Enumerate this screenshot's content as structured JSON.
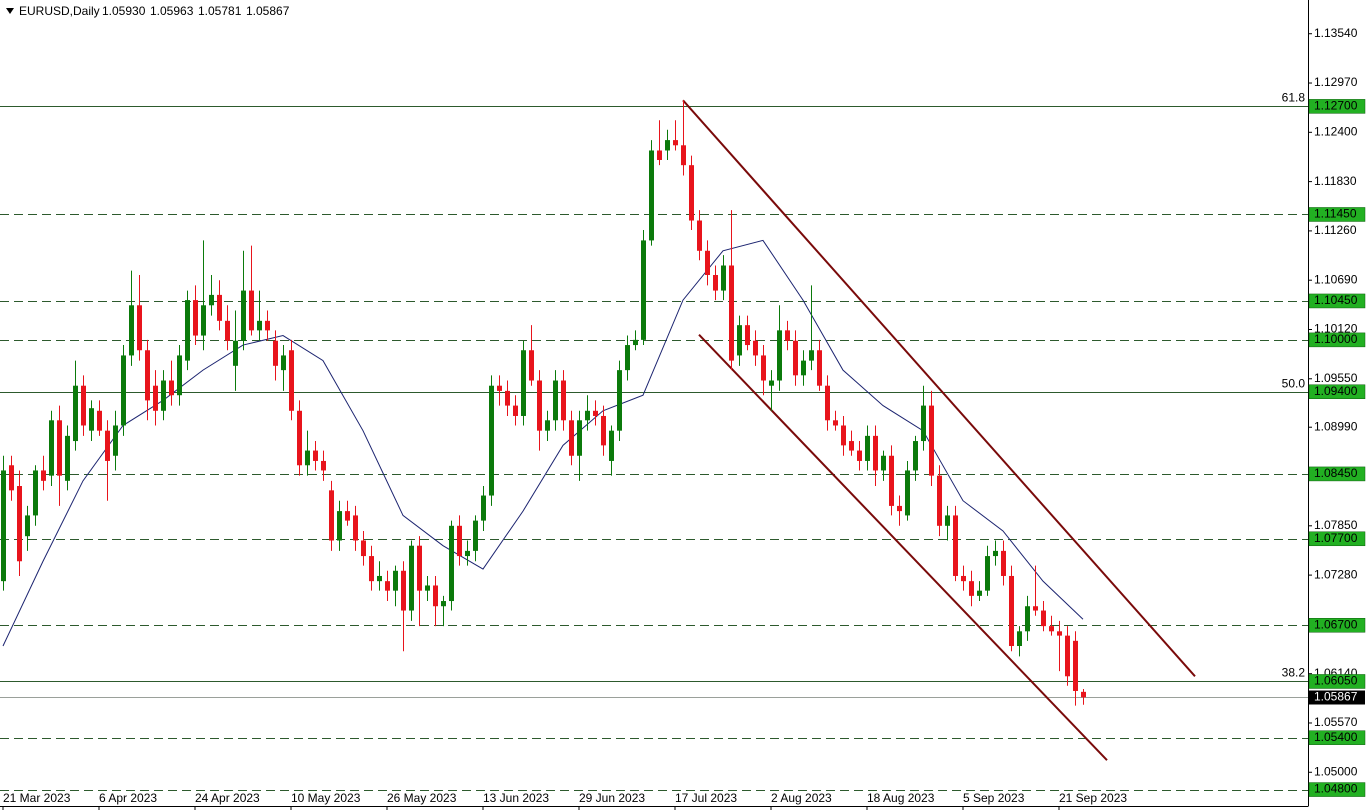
{
  "chart_data": {
    "type": "candlestick",
    "header": {
      "symbol": "EURUSD,Daily",
      "quote": [
        "1.05930",
        "1.05963",
        "1.05781",
        "1.05867"
      ]
    },
    "x": [
      0,
      1,
      2,
      3,
      4,
      5,
      6,
      7,
      8,
      9,
      10,
      11,
      12,
      13,
      14,
      15,
      16,
      17,
      18,
      19,
      20,
      21,
      22,
      23,
      24,
      25,
      26,
      27,
      28,
      29,
      30,
      31,
      32,
      33,
      34,
      35,
      36,
      37,
      38,
      39,
      40,
      41,
      42,
      43,
      44,
      45,
      46,
      47,
      48,
      49,
      50,
      51,
      52,
      53,
      54,
      55,
      56,
      57,
      58,
      59,
      60,
      61,
      62,
      63,
      64,
      65,
      66,
      67,
      68,
      69,
      70,
      71,
      72,
      73,
      74,
      75,
      76,
      77,
      78,
      79,
      80,
      81,
      82,
      83,
      84,
      85,
      86,
      87,
      88,
      89,
      90,
      91,
      92,
      93,
      94,
      95,
      96,
      97,
      98,
      99,
      100,
      101,
      102,
      103,
      104,
      105,
      106,
      107,
      108,
      109,
      110,
      111,
      112,
      113,
      114,
      115,
      116,
      117,
      118,
      119,
      120,
      121,
      122,
      123,
      124,
      125,
      126,
      127,
      128,
      129,
      130,
      131,
      132,
      133,
      134,
      135
    ],
    "open": [
      1.0721,
      1.0855,
      1.0831,
      1.0773,
      1.0797,
      1.0849,
      1.0843,
      1.0907,
      1.0837,
      1.0883,
      1.0947,
      1.0895,
      1.0918,
      1.0895,
      1.0866,
      1.0901,
      1.0982,
      1.104,
      1.0988,
      1.0947,
      1.0918,
      1.0953,
      1.0936,
      1.0976,
      1.1046,
      1.1005,
      1.104,
      1.1052,
      1.1022,
      1.097,
      1.0999,
      1.1057,
      1.1011,
      1.1022,
      1.0999,
      1.0965,
      1.0988,
      1.0918,
      1.0855,
      1.0872,
      1.086,
      1.0826,
      1.0768,
      1.0802,
      1.0797,
      1.0768,
      1.075,
      1.0721,
      1.0721,
      1.071,
      1.0733,
      1.0687,
      1.0762,
      1.071,
      1.0716,
      1.0692,
      1.0698,
      1.0785,
      1.075,
      1.0756,
      1.0791,
      1.082,
      1.0947,
      1.0941,
      1.0924,
      1.0912,
      1.0988,
      1.0953,
      1.0895,
      1.0907,
      1.0953,
      1.0907,
      1.0866,
      1.0907,
      1.0918,
      1.0912,
      1.086,
      1.0895,
      1.0965,
      1.0994,
      1.1,
      1.1115,
      1.1219,
      1.1219,
      1.1231,
      1.1225,
      1.1202,
      1.1138,
      1.1103,
      1.1075,
      1.1057,
      1.1086,
      1.0982,
      1.1017,
      1.0999,
      1.0982,
      1.0947,
      1.0953,
      1.1011,
      1.0999,
      1.0959,
      1.0976,
      1.0988,
      1.0947,
      1.0907,
      1.0901,
      1.0883,
      1.0872,
      1.086,
      1.0889,
      1.0849,
      1.0866,
      1.0808,
      1.0797,
      1.0849,
      1.0883,
      1.0924,
      1.0843,
      1.0785,
      1.0797,
      1.0727,
      1.0721,
      1.0704,
      1.071,
      1.075,
      1.0756,
      1.0727,
      1.0646,
      1.0663,
      1.0692,
      1.0687,
      1.0669,
      1.0663,
      1.0658,
      1.0652,
      1.0593
    ],
    "high": [
      1.0866,
      1.0866,
      1.0849,
      1.0808,
      1.0855,
      1.0866,
      1.0918,
      1.0924,
      1.0901,
      1.0976,
      1.0959,
      1.093,
      1.093,
      1.0907,
      1.0918,
      1.0994,
      1.108,
      1.1075,
      1.1,
      1.0965,
      1.0965,
      1.0976,
      1.0994,
      1.1057,
      1.1063,
      1.1115,
      1.1075,
      1.1069,
      1.104,
      1.1034,
      1.1103,
      1.1109,
      1.1057,
      1.1034,
      1.1011,
      1.0994,
      1.1,
      1.093,
      1.0895,
      1.0883,
      1.0872,
      1.0837,
      1.0814,
      1.0814,
      1.0808,
      1.0779,
      1.0762,
      1.0744,
      1.0733,
      1.0739,
      1.0744,
      1.0768,
      1.0773,
      1.0727,
      1.0727,
      1.0704,
      1.0791,
      1.0797,
      1.0768,
      1.0797,
      1.0831,
      1.0959,
      1.0959,
      1.0953,
      1.0936,
      1.0999,
      1.1017,
      1.0965,
      1.0918,
      1.0965,
      1.0965,
      1.0918,
      1.0918,
      1.0936,
      1.093,
      1.0924,
      1.0901,
      1.0976,
      1.1005,
      1.1011,
      1.1127,
      1.1231,
      1.1254,
      1.1243,
      1.1254,
      1.1277,
      1.1213,
      1.115,
      1.1115,
      1.1086,
      1.1098,
      1.115,
      1.1028,
      1.1028,
      1.1011,
      1.0994,
      1.0965,
      1.104,
      1.1022,
      1.1011,
      1.0988,
      1.1063,
      1.1,
      1.0959,
      1.0918,
      1.0912,
      1.0895,
      1.0883,
      1.0901,
      1.0901,
      1.0872,
      1.0878,
      1.082,
      1.086,
      1.0889,
      1.0947,
      1.0941,
      1.0855,
      1.0808,
      1.0808,
      1.0739,
      1.0733,
      1.0721,
      1.0762,
      1.0768,
      1.0768,
      1.0739,
      1.0669,
      1.0704,
      1.0739,
      1.0698,
      1.0681,
      1.0675,
      1.0669,
      1.0663,
      1.05963
    ],
    "low": [
      1.071,
      1.0814,
      1.0727,
      1.0756,
      1.0785,
      1.0826,
      1.0831,
      1.0808,
      1.0826,
      1.0872,
      1.0889,
      1.0883,
      1.0889,
      1.0814,
      1.0849,
      1.0889,
      1.097,
      1.0976,
      1.0907,
      1.0901,
      1.0907,
      1.0924,
      1.0924,
      1.0965,
      1.0994,
      1.0988,
      1.1028,
      1.1011,
      1.0988,
      1.0941,
      1.0988,
      1.1005,
      1.0999,
      1.0999,
      1.0953,
      1.0941,
      1.0907,
      1.0843,
      1.0843,
      1.0849,
      1.0837,
      1.0756,
      1.0756,
      1.0785,
      1.0756,
      1.0739,
      1.071,
      1.071,
      1.0698,
      1.0692,
      1.064,
      1.0675,
      1.0669,
      1.0698,
      1.0669,
      1.0669,
      1.0687,
      1.0739,
      1.0739,
      1.0744,
      1.0779,
      1.0808,
      1.0924,
      1.0912,
      1.0901,
      1.0901,
      1.0947,
      1.0872,
      1.0883,
      1.0895,
      1.0895,
      1.0855,
      1.0837,
      1.0895,
      1.0901,
      1.0866,
      1.0843,
      1.0883,
      1.0953,
      1.0988,
      1.0994,
      1.1109,
      1.1202,
      1.1208,
      1.1219,
      1.119,
      1.1127,
      1.1092,
      1.1063,
      1.1046,
      1.1046,
      1.0965,
      1.097,
      1.0988,
      1.097,
      1.0936,
      1.0918,
      1.0941,
      1.0988,
      1.0947,
      1.0947,
      1.0965,
      1.0941,
      1.0895,
      1.0895,
      1.0866,
      1.0866,
      1.0849,
      1.0849,
      1.0831,
      1.0837,
      1.0797,
      1.0785,
      1.0791,
      1.0837,
      1.0872,
      1.0831,
      1.0773,
      1.0768,
      1.0721,
      1.071,
      1.0692,
      1.0698,
      1.0704,
      1.0739,
      1.0716,
      1.064,
      1.0634,
      1.0652,
      1.0681,
      1.0663,
      1.0658,
      1.0617,
      1.06,
      1.0577,
      1.05781
    ],
    "close": [
      1.0849,
      1.0826,
      1.0744,
      1.0797,
      1.0849,
      1.0837,
      1.0907,
      1.0843,
      1.0889,
      1.0947,
      1.0901,
      1.0921,
      1.0895,
      1.086,
      1.0901,
      1.0982,
      1.104,
      1.0988,
      1.093,
      1.0918,
      1.0953,
      1.0936,
      1.0982,
      1.1046,
      1.1005,
      1.104,
      1.1052,
      1.1022,
      1.0999,
      1.0999,
      1.1057,
      1.1011,
      1.1022,
      1.1011,
      1.097,
      1.0982,
      1.0918,
      1.0855,
      1.0872,
      1.086,
      1.0849,
      1.0768,
      1.0802,
      1.0791,
      1.0768,
      1.075,
      1.0721,
      1.0727,
      1.071,
      1.0733,
      1.0687,
      1.0762,
      1.071,
      1.0716,
      1.0692,
      1.0698,
      1.0785,
      1.075,
      1.0756,
      1.0791,
      1.082,
      1.0947,
      1.0941,
      1.0924,
      1.0912,
      1.0988,
      1.0953,
      1.0895,
      1.0907,
      1.0953,
      1.0907,
      1.0866,
      1.0907,
      1.0918,
      1.0912,
      1.0878,
      1.0895,
      1.0965,
      1.0994,
      1.1,
      1.1115,
      1.1219,
      1.1208,
      1.1231,
      1.1225,
      1.1202,
      1.1138,
      1.1103,
      1.1075,
      1.1057,
      1.1086,
      1.0976,
      1.1017,
      1.0994,
      1.0982,
      1.0953,
      1.0953,
      1.1011,
      1.0999,
      1.0959,
      1.0976,
      1.0988,
      1.0947,
      1.0907,
      1.0901,
      1.0878,
      1.0872,
      1.086,
      1.0889,
      1.0849,
      1.0866,
      1.0808,
      1.0802,
      1.0849,
      1.0883,
      1.0924,
      1.0843,
      1.0785,
      1.0797,
      1.0727,
      1.0721,
      1.0704,
      1.071,
      1.075,
      1.0756,
      1.0727,
      1.0646,
      1.0663,
      1.0692,
      1.0687,
      1.0669,
      1.0663,
      1.0658,
      1.0611,
      1.0594,
      1.05867
    ],
    "up_color": "#0b7a0b",
    "down_color": "#e8141c",
    "ma": {
      "x": [
        0,
        5,
        10,
        15,
        20,
        25,
        30,
        35,
        40,
        45,
        50,
        55,
        60,
        65,
        70,
        75,
        80,
        85,
        90,
        95,
        100,
        105,
        110,
        115,
        120,
        125,
        130,
        135
      ],
      "values": [
        1.0646,
        1.0744,
        1.0837,
        1.0901,
        1.093,
        1.0965,
        1.0994,
        1.1005,
        1.0976,
        1.0895,
        1.0797,
        1.0762,
        1.0735,
        1.0802,
        1.0878,
        1.0918,
        1.0936,
        1.1046,
        1.1103,
        1.1115,
        1.1046,
        1.0965,
        1.0924,
        1.0895,
        1.0814,
        1.0779,
        1.0721,
        1.0677
      ],
      "color": "#1c2470"
    },
    "trendlines": [
      {
        "x": [
          85,
          149
        ],
        "values": [
          1.1277,
          1.0611
        ]
      },
      {
        "x": [
          87,
          138
        ],
        "values": [
          1.1006,
          1.0514
        ]
      }
    ],
    "trendline_color": "#7a0a0a",
    "levels": [
      {
        "value": 1.127,
        "label": "1.12700",
        "solid": true,
        "fib": "61.8"
      },
      {
        "value": 1.1145,
        "label": "1.11450",
        "solid": false
      },
      {
        "value": 1.1045,
        "label": "1.10450",
        "solid": false
      },
      {
        "value": 1.1,
        "label": "1.10000",
        "solid": false
      },
      {
        "value": 1.094,
        "label": "1.09400",
        "solid": true,
        "fib": "50.0"
      },
      {
        "value": 1.0845,
        "label": "1.08450",
        "solid": false
      },
      {
        "value": 1.077,
        "label": "1.07700",
        "solid": false
      },
      {
        "value": 1.067,
        "label": "1.06700",
        "solid": false
      },
      {
        "value": 1.0605,
        "label": "1.06050",
        "solid": true,
        "fib": "38.2"
      },
      {
        "value": 1.054,
        "label": "1.05400",
        "solid": false
      },
      {
        "value": 1.048,
        "label": "1.04800",
        "solid": false
      }
    ],
    "level_color": "#2d5a2d",
    "level_box_color": "#22b022",
    "current": {
      "value": 1.05867,
      "label": "1.05867"
    },
    "xlim": [
      -0.375,
      163.125
    ],
    "ylim": [
      1.0461,
      1.1393
    ],
    "xticks": [
      {
        "value": 0,
        "label": "21 Mar 2023"
      },
      {
        "value": 12,
        "label": "6 Apr 2023"
      },
      {
        "value": 24,
        "label": "24 Apr 2023"
      },
      {
        "value": 36,
        "label": "10 May 2023"
      },
      {
        "value": 48,
        "label": "26 May 2023"
      },
      {
        "value": 60,
        "label": "13 Jun 2023"
      },
      {
        "value": 72,
        "label": "29 Jun 2023"
      },
      {
        "value": 84,
        "label": "17 Jul 2023"
      },
      {
        "value": 96,
        "label": "2 Aug 2023"
      },
      {
        "value": 108,
        "label": "18 Aug 2023"
      },
      {
        "value": 120,
        "label": "5 Sep 2023"
      },
      {
        "value": 132,
        "label": "21 Sep 2023"
      }
    ],
    "yticks": [
      {
        "value": 1.1354,
        "label": "1.13540"
      },
      {
        "value": 1.1297,
        "label": "1.12970"
      },
      {
        "value": 1.124,
        "label": "1.12400"
      },
      {
        "value": 1.1183,
        "label": "1.11830"
      },
      {
        "value": 1.1126,
        "label": "1.11260"
      },
      {
        "value": 1.1069,
        "label": "1.10690"
      },
      {
        "value": 1.1012,
        "label": "1.10120"
      },
      {
        "value": 1.0955,
        "label": "1.09550"
      },
      {
        "value": 1.0899,
        "label": "1.08990"
      },
      {
        "value": 1.0785,
        "label": "1.07850"
      },
      {
        "value": 1.0728,
        "label": "1.07280"
      },
      {
        "value": 1.0614,
        "label": "1.06140"
      },
      {
        "value": 1.0557,
        "label": "1.05570"
      },
      {
        "value": 1.05,
        "label": "1.05000"
      }
    ]
  }
}
